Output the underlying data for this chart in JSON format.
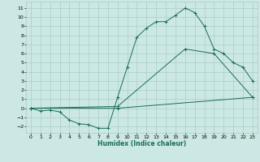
{
  "background_color": "#cce8e4",
  "grid_color": "#aaccca",
  "line_color": "#1a6b5a",
  "xlabel": "Humidex (Indice chaleur)",
  "xlim": [
    -0.5,
    23.5
  ],
  "ylim": [
    -2.7,
    11.7
  ],
  "xticks": [
    0,
    1,
    2,
    3,
    4,
    5,
    6,
    7,
    8,
    9,
    10,
    11,
    12,
    13,
    14,
    15,
    16,
    17,
    18,
    19,
    20,
    21,
    22,
    23
  ],
  "yticks": [
    -2,
    -1,
    0,
    1,
    2,
    3,
    4,
    5,
    6,
    7,
    8,
    9,
    10,
    11
  ],
  "c1x": [
    0,
    1,
    2,
    3,
    4,
    5,
    6,
    7,
    8,
    9,
    10,
    11,
    12,
    13,
    14,
    15,
    16,
    17,
    18,
    19,
    20,
    21,
    22,
    23
  ],
  "c1y": [
    0,
    -0.3,
    -0.2,
    -0.4,
    -1.3,
    -1.7,
    -1.8,
    -2.2,
    -2.2,
    1.2,
    4.5,
    7.8,
    8.8,
    9.5,
    9.5,
    10.2,
    11.0,
    10.5,
    9.0,
    6.5,
    6.0,
    5.0,
    4.5,
    3.0
  ],
  "c2x": [
    0,
    9,
    23
  ],
  "c2y": [
    0,
    0,
    1.2
  ],
  "c3x": [
    0,
    9,
    16,
    19,
    23
  ],
  "c3y": [
    0,
    0.2,
    6.5,
    6.0,
    1.2
  ]
}
